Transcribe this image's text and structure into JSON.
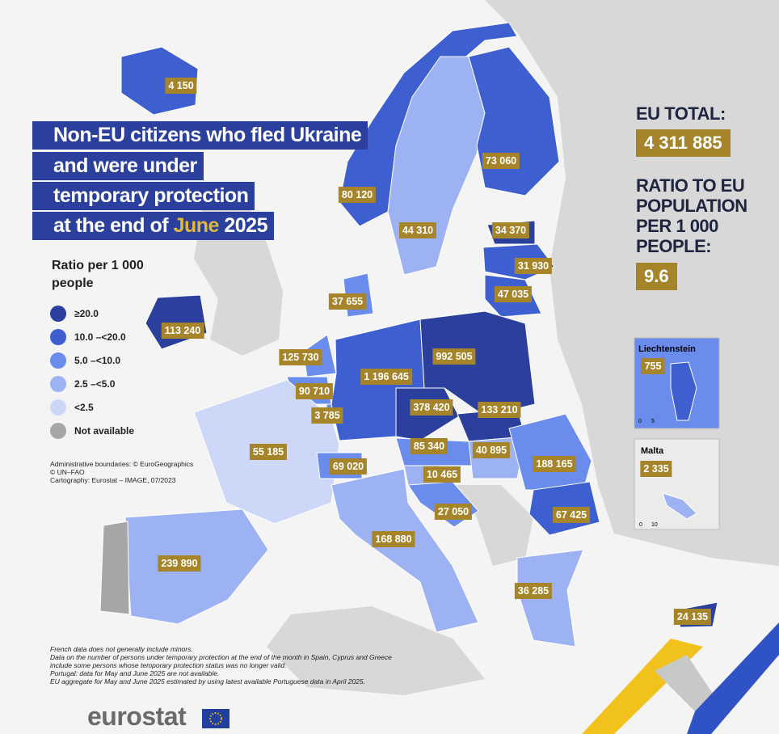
{
  "title": {
    "lines": [
      "Non-EU citizens who fled Ukraine",
      "and were under",
      "temporary protection"
    ],
    "last_prefix": "at the end of",
    "month": "June",
    "year": "2025"
  },
  "legend": {
    "title": "Ratio per 1 000 people",
    "items": [
      {
        "label": "≥20.0",
        "color": "#2b3f9c"
      },
      {
        "label": "10.0 –<20.0",
        "color": "#3d5fcf"
      },
      {
        "label": "5.0 –<10.0",
        "color": "#6a8cec"
      },
      {
        "label": "2.5 –<5.0",
        "color": "#9db2f2"
      },
      {
        "label": "<2.5",
        "color": "#cdd8f8"
      },
      {
        "label": "Not available",
        "color": "#a6a6a6"
      }
    ]
  },
  "sources": [
    "Administrative boundaries: © EuroGeographics",
    "© UN–FAO",
    "Cartography: Eurostat – IMAGE, 07/2023"
  ],
  "eu_total": {
    "label": "EU TOTAL:",
    "value": "4 311 885"
  },
  "ratio": {
    "lines": [
      "RATIO TO EU",
      "POPULATION",
      "PER 1 000",
      "PEOPLE:"
    ],
    "value": "9.6"
  },
  "countries": [
    {
      "value": "4 150",
      "color": "#3d5fcf"
    },
    {
      "value": "80 120",
      "color": "#3d5fcf"
    },
    {
      "value": "44 310",
      "color": "#9db2f2"
    },
    {
      "value": "73 060",
      "color": "#3d5fcf"
    },
    {
      "value": "34 370",
      "color": "#2b3f9c"
    },
    {
      "value": "31 930",
      "color": "#3d5fcf"
    },
    {
      "value": "47 035",
      "color": "#3d5fcf"
    },
    {
      "value": "37 655",
      "color": "#6a8cec"
    },
    {
      "value": "113 240",
      "color": "#2b3f9c"
    },
    {
      "value": "125 730",
      "color": "#6a8cec"
    },
    {
      "value": "90 710",
      "color": "#6a8cec"
    },
    {
      "value": "3 785",
      "color": "#6a8cec"
    },
    {
      "value": "1 196 645",
      "color": "#3d5fcf"
    },
    {
      "value": "992 505",
      "color": "#2b3f9c"
    },
    {
      "value": "378 420",
      "color": "#2b3f9c"
    },
    {
      "value": "133 210",
      "color": "#2b3f9c"
    },
    {
      "value": "85 340",
      "color": "#6a8cec"
    },
    {
      "value": "40 895",
      "color": "#9db2f2"
    },
    {
      "value": "188 165",
      "color": "#6a8cec"
    },
    {
      "value": "67 425",
      "color": "#3d5fcf"
    },
    {
      "value": "55 185",
      "color": "#cdd8f8"
    },
    {
      "value": "69 020",
      "color": "#6a8cec"
    },
    {
      "value": "10 465",
      "color": "#9db2f2"
    },
    {
      "value": "27 050",
      "color": "#6a8cec"
    },
    {
      "value": "168 880",
      "color": "#9db2f2"
    },
    {
      "value": "239 890",
      "color": "#9db2f2"
    },
    {
      "value": null,
      "color": "#a6a6a6"
    },
    {
      "value": "36 285",
      "color": "#9db2f2"
    },
    {
      "value": "24 135",
      "color": "#2b3f9c"
    }
  ],
  "insets": [
    {
      "name": "Liechtenstein",
      "value": "755",
      "color": "#3d5fcf",
      "scale": [
        "0",
        "5"
      ]
    },
    {
      "name": "Malta",
      "value": "2 335",
      "color": "#9db2f2",
      "scale": [
        "0",
        "10"
      ]
    }
  ],
  "footnotes": [
    "French data does not generally include minors.",
    "Data on the number of persons under temporary protection at the end of the month in Spain, Cyprus and Greece",
    "include some persons whose temporary protection status was no longer valid.",
    "Portugal: data for May and June 2025 are not available.",
    "EU aggregate for May and June 2025 estimated by using latest available Portuguese data in April 2025."
  ],
  "logo": "eurostat"
}
